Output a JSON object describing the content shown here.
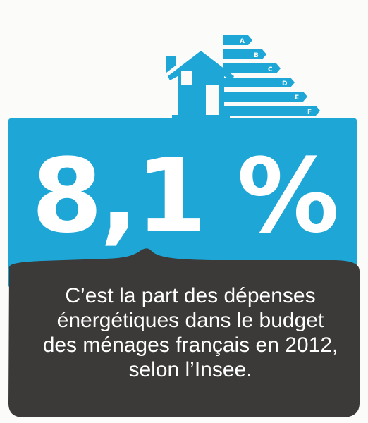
{
  "headline": {
    "value": "8,1 %"
  },
  "energy_scale": {
    "labels": [
      "A",
      "B",
      "C",
      "D",
      "E",
      "F"
    ]
  },
  "caption": {
    "lines": [
      "C’est la part des dépenses",
      "énergétiques dans le budget",
      "des ménages français en 2012,",
      "selon l’Insee."
    ]
  },
  "colors": {
    "accent_blue": "#1da6d6",
    "dark_panel": "#3b3a38",
    "background": "#fbfbf9",
    "text": "#ffffff"
  }
}
